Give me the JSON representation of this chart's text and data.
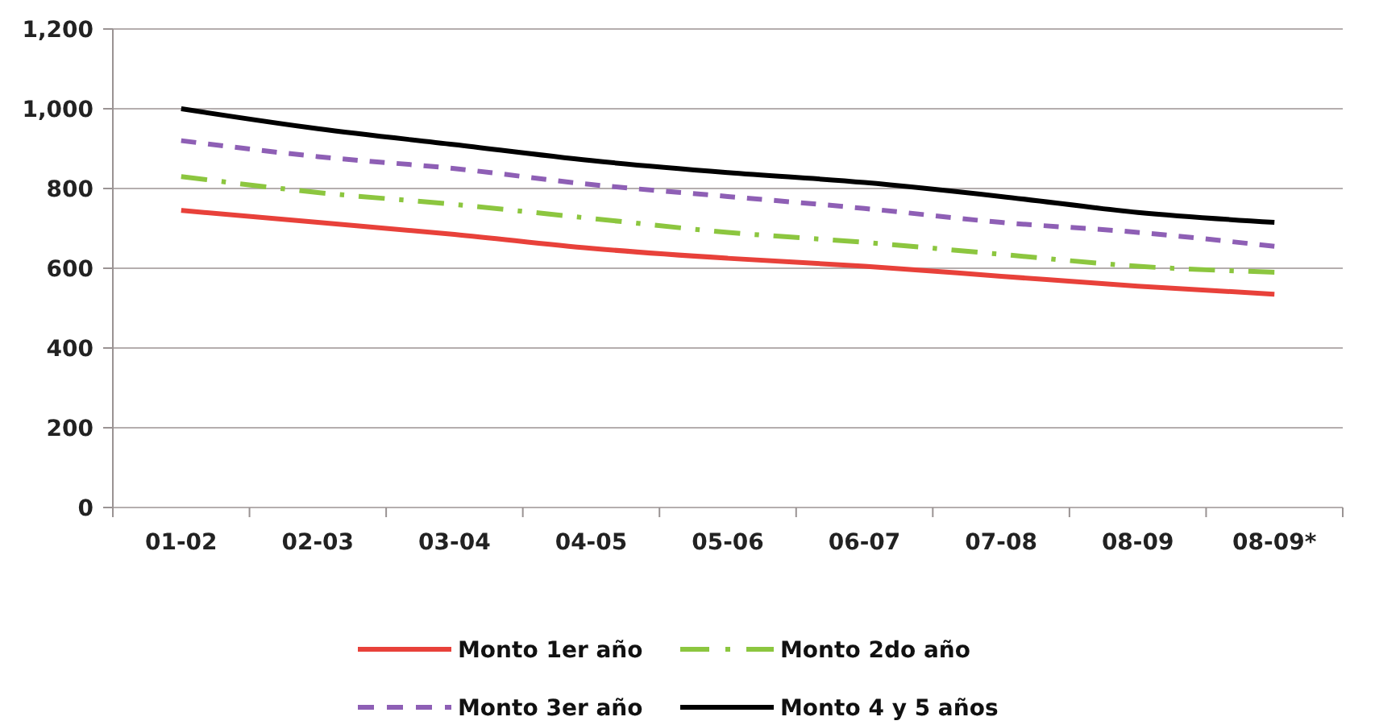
{
  "chart_data": {
    "type": "line",
    "categories": [
      "01-02",
      "02-03",
      "03-04",
      "04-05",
      "05-06",
      "06-07",
      "07-08",
      "08-09",
      "08-09*"
    ],
    "series": [
      {
        "name": "Monto 1er año",
        "color": "#e8413a",
        "line_style": "solid",
        "values": [
          745,
          715,
          685,
          650,
          625,
          605,
          580,
          555,
          535
        ]
      },
      {
        "name": "Monto 2do año",
        "color": "#8cc63f",
        "line_style": "dashdot",
        "values": [
          830,
          790,
          760,
          725,
          690,
          665,
          635,
          605,
          590
        ]
      },
      {
        "name": "Monto 3er año",
        "color": "#8e5fb5",
        "line_style": "dashed",
        "values": [
          920,
          880,
          850,
          810,
          780,
          750,
          715,
          690,
          655
        ]
      },
      {
        "name": "Monto 4 y 5 años",
        "color": "#000000",
        "line_style": "solid",
        "values": [
          1000,
          950,
          910,
          870,
          840,
          815,
          780,
          740,
          715
        ]
      }
    ],
    "ylim": [
      0,
      1200
    ],
    "yticks": [
      0,
      {
        "value": 200,
        "label": "200"
      },
      {
        "value": 400,
        "label": "400"
      },
      {
        "value": 600,
        "label": "600"
      },
      {
        "value": 800,
        "label": "800"
      },
      {
        "value": 1000,
        "label": "1,000"
      },
      {
        "value": 1200,
        "label": "1,200"
      }
    ],
    "grid": "y",
    "legend": "bottom",
    "marker": "none"
  }
}
